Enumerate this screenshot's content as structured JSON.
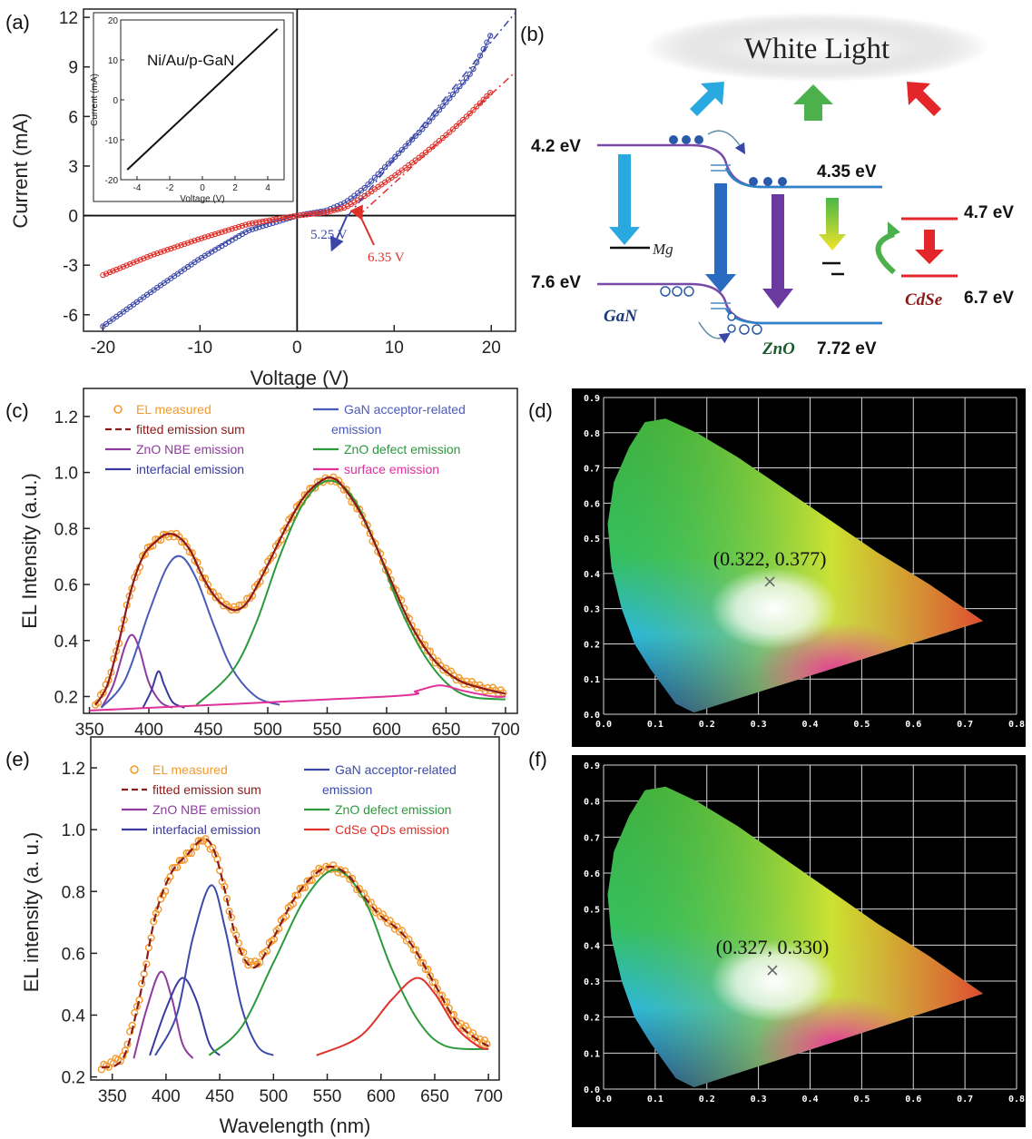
{
  "panels": {
    "a": "(a)",
    "b": "(b)",
    "c": "(c)",
    "d": "(d)",
    "e": "(e)",
    "f": "(f)"
  },
  "colors": {
    "blue_series": "#3a47a8",
    "red_series": "#e0302a",
    "orange": "#f29a2e",
    "darkred": "#8b1a1a",
    "purple": "#8e3a9e",
    "green": "#2a9a3c",
    "magenta": "#e0309a",
    "navy": "#3a3a9e"
  },
  "chart_data": [
    {
      "id": "a",
      "type": "line",
      "xlabel": "Voltage (V)",
      "ylabel": "Current (mA)",
      "xlim": [
        -22,
        22.5
      ],
      "ylim": [
        -7,
        12.5
      ],
      "xticks": [
        "-20",
        "-10",
        "0",
        "10",
        "20"
      ],
      "yticks": [
        "-6",
        "-3",
        "0",
        "3",
        "6",
        "9",
        "12"
      ],
      "series": [
        {
          "values": [
            [
              -20,
              -6.7
            ],
            [
              -15,
              -4.6
            ],
            [
              -10,
              -2.6
            ],
            [
              -5,
              -0.9
            ],
            [
              0,
              0
            ],
            [
              3,
              0.3
            ],
            [
              5,
              0.8
            ],
            [
              7,
              1.7
            ],
            [
              10,
              3.5
            ],
            [
              13,
              5.3
            ],
            [
              16,
              7.3
            ],
            [
              18,
              8.7
            ],
            [
              20,
              11
            ]
          ]
        },
        {
          "values": [
            [
              -20,
              -3.6
            ],
            [
              -15,
              -2.4
            ],
            [
              -10,
              -1.4
            ],
            [
              -5,
              -0.5
            ],
            [
              0,
              0
            ],
            [
              3,
              0.2
            ],
            [
              5,
              0.5
            ],
            [
              7,
              1.2
            ],
            [
              10,
              2.4
            ],
            [
              13,
              3.7
            ],
            [
              16,
              5.2
            ],
            [
              18,
              6.3
            ],
            [
              20,
              7.5
            ]
          ]
        }
      ],
      "annotations": [
        "5.25 V",
        "6.35 V"
      ],
      "inset": {
        "label": "Ni/Au/p-GaN",
        "xlabel": "Voltage (V)",
        "ylabel": "Current (mA)",
        "xticks": [
          "-4",
          "-2",
          "0",
          "2",
          "4"
        ],
        "yticks": [
          "-20",
          "-10",
          "0",
          "10",
          "20"
        ],
        "values": [
          [
            -4.6,
            -17.5
          ],
          [
            4.6,
            17.8
          ]
        ]
      }
    },
    {
      "id": "c",
      "type": "line",
      "xlabel": "",
      "ylabel": "EL Intensity (a.u.)",
      "xlim": [
        345,
        710
      ],
      "ylim": [
        0.14,
        1.3
      ],
      "xticks": [
        "350",
        "400",
        "450",
        "500",
        "550",
        "600",
        "650",
        "700"
      ],
      "yticks": [
        "0.2",
        "0.4",
        "0.6",
        "0.8",
        "1.0",
        "1.2"
      ],
      "legend": [
        "EL measured",
        "fitted emission sum",
        "ZnO NBE emission",
        "interfacial emission",
        "GaN acceptor-related",
        "emission",
        "ZnO defect emission",
        "surface emission"
      ],
      "series": [
        {
          "name": "EL measured",
          "values": [
            [
              355,
              0.17
            ],
            [
              365,
              0.24
            ],
            [
              375,
              0.4
            ],
            [
              385,
              0.58
            ],
            [
              395,
              0.7
            ],
            [
              405,
              0.75
            ],
            [
              415,
              0.78
            ],
            [
              425,
              0.77
            ],
            [
              435,
              0.72
            ],
            [
              445,
              0.63
            ],
            [
              455,
              0.56
            ],
            [
              465,
              0.52
            ],
            [
              475,
              0.51
            ],
            [
              485,
              0.55
            ],
            [
              500,
              0.67
            ],
            [
              515,
              0.8
            ],
            [
              530,
              0.91
            ],
            [
              545,
              0.97
            ],
            [
              555,
              0.98
            ],
            [
              565,
              0.94
            ],
            [
              580,
              0.84
            ],
            [
              600,
              0.65
            ],
            [
              620,
              0.46
            ],
            [
              640,
              0.33
            ],
            [
              660,
              0.26
            ],
            [
              680,
              0.23
            ],
            [
              700,
              0.21
            ]
          ]
        },
        {
          "name": "ZnO NBE emission",
          "values": [
            [
              360,
              0.16
            ],
            [
              370,
              0.24
            ],
            [
              380,
              0.38
            ],
            [
              386,
              0.42
            ],
            [
              392,
              0.37
            ],
            [
              400,
              0.25
            ],
            [
              410,
              0.18
            ],
            [
              420,
              0.16
            ]
          ]
        },
        {
          "name": "interfacial emission",
          "values": [
            [
              395,
              0.16
            ],
            [
              402,
              0.22
            ],
            [
              408,
              0.29
            ],
            [
              413,
              0.24
            ],
            [
              420,
              0.18
            ],
            [
              430,
              0.16
            ]
          ]
        },
        {
          "name": "GaN acceptor-related emission",
          "values": [
            [
              360,
              0.16
            ],
            [
              380,
              0.26
            ],
            [
              400,
              0.5
            ],
            [
              415,
              0.66
            ],
            [
              427,
              0.7
            ],
            [
              440,
              0.62
            ],
            [
              455,
              0.45
            ],
            [
              470,
              0.3
            ],
            [
              490,
              0.2
            ],
            [
              510,
              0.17
            ]
          ]
        },
        {
          "name": "ZnO defect emission",
          "values": [
            [
              440,
              0.17
            ],
            [
              470,
              0.29
            ],
            [
              490,
              0.46
            ],
            [
              510,
              0.7
            ],
            [
              530,
              0.89
            ],
            [
              550,
              0.97
            ],
            [
              570,
              0.92
            ],
            [
              590,
              0.75
            ],
            [
              610,
              0.53
            ],
            [
              630,
              0.36
            ],
            [
              650,
              0.25
            ],
            [
              670,
              0.2
            ],
            [
              700,
              0.19
            ]
          ]
        },
        {
          "name": "surface emission",
          "values": [
            [
              350,
              0.15
            ],
            [
              600,
              0.2
            ],
            [
              625,
              0.22
            ],
            [
              645,
              0.24
            ],
            [
              665,
              0.22
            ],
            [
              690,
              0.2
            ],
            [
              700,
              0.2
            ]
          ]
        }
      ]
    },
    {
      "id": "d",
      "type": "scatter",
      "xlim": [
        0,
        0.8
      ],
      "ylim": [
        0,
        0.9
      ],
      "xticks": [
        "0.0",
        "0.1",
        "0.2",
        "0.3",
        "0.4",
        "0.5",
        "0.6",
        "0.7",
        "0.8"
      ],
      "yticks": [
        "0.0",
        "0.1",
        "0.2",
        "0.3",
        "0.4",
        "0.5",
        "0.6",
        "0.7",
        "0.8",
        "0.9"
      ],
      "point": [
        0.322,
        0.377
      ],
      "point_label": "(0.322, 0.377)"
    },
    {
      "id": "e",
      "type": "line",
      "xlabel": "Wavelength (nm)",
      "ylabel": "EL intensity (a. u.)",
      "xlim": [
        330,
        710
      ],
      "ylim": [
        0.19,
        1.3
      ],
      "xticks": [
        "350",
        "400",
        "450",
        "500",
        "550",
        "600",
        "650",
        "700"
      ],
      "yticks": [
        "0.2",
        "0.4",
        "0.6",
        "0.8",
        "1.0",
        "1.2"
      ],
      "legend": [
        "EL measured",
        "fitted emission sum",
        "ZnO NBE emission",
        "interfacial emission",
        "GaN acceptor-related",
        "emission",
        "ZnO defect emission",
        "CdSe QDs emission"
      ],
      "series": [
        {
          "name": "EL measured",
          "values": [
            [
              340,
              0.23
            ],
            [
              360,
              0.26
            ],
            [
              375,
              0.45
            ],
            [
              390,
              0.72
            ],
            [
              405,
              0.86
            ],
            [
              420,
              0.92
            ],
            [
              435,
              0.97
            ],
            [
              445,
              0.93
            ],
            [
              455,
              0.8
            ],
            [
              465,
              0.65
            ],
            [
              475,
              0.57
            ],
            [
              485,
              0.56
            ],
            [
              500,
              0.65
            ],
            [
              520,
              0.78
            ],
            [
              540,
              0.86
            ],
            [
              555,
              0.88
            ],
            [
              570,
              0.85
            ],
            [
              585,
              0.78
            ],
            [
              600,
              0.72
            ],
            [
              615,
              0.68
            ],
            [
              630,
              0.62
            ],
            [
              650,
              0.5
            ],
            [
              670,
              0.38
            ],
            [
              690,
              0.32
            ],
            [
              700,
              0.3
            ]
          ]
        },
        {
          "name": "ZnO NBE emission",
          "values": [
            [
              370,
              0.26
            ],
            [
              382,
              0.42
            ],
            [
              395,
              0.54
            ],
            [
              405,
              0.46
            ],
            [
              415,
              0.31
            ],
            [
              425,
              0.26
            ]
          ]
        },
        {
          "name": "interfacial emission",
          "values": [
            [
              385,
              0.27
            ],
            [
              400,
              0.42
            ],
            [
              415,
              0.52
            ],
            [
              428,
              0.45
            ],
            [
              440,
              0.31
            ],
            [
              450,
              0.27
            ]
          ]
        },
        {
          "name": "GaN acceptor-related emission",
          "values": [
            [
              390,
              0.27
            ],
            [
              410,
              0.4
            ],
            [
              425,
              0.65
            ],
            [
              442,
              0.82
            ],
            [
              455,
              0.68
            ],
            [
              470,
              0.43
            ],
            [
              485,
              0.3
            ],
            [
              500,
              0.27
            ]
          ]
        },
        {
          "name": "ZnO defect emission",
          "values": [
            [
              440,
              0.27
            ],
            [
              470,
              0.36
            ],
            [
              500,
              0.57
            ],
            [
              530,
              0.78
            ],
            [
              558,
              0.87
            ],
            [
              585,
              0.77
            ],
            [
              610,
              0.55
            ],
            [
              635,
              0.38
            ],
            [
              660,
              0.3
            ],
            [
              700,
              0.29
            ]
          ]
        },
        {
          "name": "CdSe QDs emission",
          "values": [
            [
              540,
              0.27
            ],
            [
              580,
              0.33
            ],
            [
              610,
              0.45
            ],
            [
              633,
              0.52
            ],
            [
              650,
              0.47
            ],
            [
              670,
              0.36
            ],
            [
              690,
              0.3
            ],
            [
              700,
              0.29
            ]
          ]
        }
      ]
    },
    {
      "id": "f",
      "type": "scatter",
      "xlim": [
        0,
        0.8
      ],
      "ylim": [
        0,
        0.9
      ],
      "xticks": [
        "0.0",
        "0.1",
        "0.2",
        "0.3",
        "0.4",
        "0.5",
        "0.6",
        "0.7",
        "0.8"
      ],
      "yticks": [
        "0.0",
        "0.1",
        "0.2",
        "0.3",
        "0.4",
        "0.5",
        "0.6",
        "0.7",
        "0.8",
        "0.9"
      ],
      "point": [
        0.327,
        0.33
      ],
      "point_label": "(0.327, 0.330)"
    }
  ],
  "diagram_b": {
    "title": "White Light",
    "labels": {
      "gan_top": "4.2 eV",
      "gan_bottom": "7.6 eV",
      "zno_top": "4.35 eV",
      "zno_bottom": "7.72 eV",
      "cdse_top": "4.7 eV",
      "cdse_bottom": "6.7 eV",
      "mg": "Mg",
      "gan": "GaN",
      "zno": "ZnO",
      "cdse": "CdSe"
    }
  }
}
